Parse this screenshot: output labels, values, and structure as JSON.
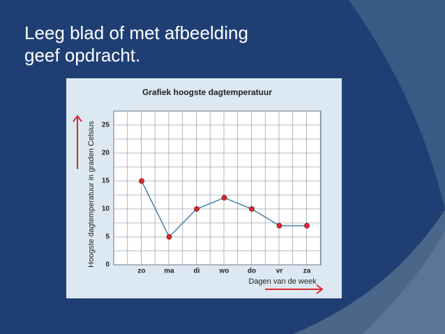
{
  "slide": {
    "title_lines": [
      "Leeg blad of met afbeelding",
      "geef opdracht."
    ]
  },
  "chart_data": {
    "type": "line",
    "title": "Grafiek hoogste dagtemperatuur",
    "y_label": "Hoogste dagtemperatuur in graden Celsius",
    "x_label": "Dagen van de week",
    "categories": [
      "zo",
      "ma",
      "di",
      "wo",
      "do",
      "vr",
      "za"
    ],
    "series": [
      {
        "name": "Hoogste dagtemperatuur",
        "color": "#4a7fa8",
        "marker_color": "#d9292b",
        "values": [
          15,
          5,
          10,
          12,
          10,
          7,
          7
        ]
      }
    ],
    "ylim": [
      0,
      27.5
    ],
    "yticks": [
      0,
      5,
      10,
      15,
      20,
      25
    ],
    "minor_yticks": [
      2.5,
      7.5,
      12.5,
      17.5,
      22.5
    ],
    "grid": true
  }
}
